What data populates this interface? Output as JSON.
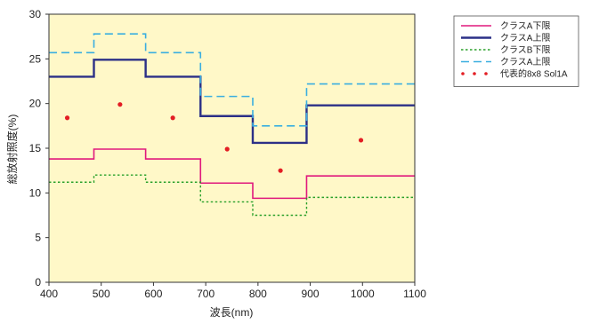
{
  "chart_data": {
    "type": "line",
    "title": "",
    "xlabel": "波長(nm)",
    "ylabel": "総放射照度(%)",
    "xlim": [
      400,
      1100
    ],
    "ylim": [
      0,
      30
    ],
    "x_ticks": [
      400,
      500,
      600,
      700,
      800,
      900,
      1000,
      1100
    ],
    "y_ticks": [
      0,
      5,
      10,
      15,
      20,
      25,
      30
    ],
    "x_tick_labels": [
      "400",
      "500",
      "600",
      "700",
      "800",
      "900",
      "1000",
      "1100"
    ],
    "y_tick_labels": [
      "0",
      "5",
      "10",
      "15",
      "20",
      "25",
      "30"
    ],
    "grid": false,
    "legend_position": "right",
    "background_color": "#fff8c8",
    "step_edges": [
      400,
      486,
      585,
      690,
      790,
      893,
      1100
    ],
    "series": [
      {
        "name": "クラスA下限",
        "style": "solid",
        "color": "#e0197d",
        "width": 1.6,
        "values": [
          13.8,
          14.9,
          13.8,
          11.1,
          9.4,
          11.9
        ]
      },
      {
        "name": "クラスA上限",
        "style": "solid",
        "color": "#2c3087",
        "width": 2.4,
        "values": [
          23.0,
          24.9,
          23.0,
          18.6,
          15.6,
          19.8
        ]
      },
      {
        "name": "クラスB下限",
        "style": "dotted",
        "color": "#2aa02a",
        "width": 1.4,
        "values": [
          11.2,
          12.0,
          11.2,
          9.0,
          7.5,
          9.5
        ]
      },
      {
        "name": "クラスA上限",
        "style": "dashed",
        "color": "#3aaee0",
        "width": 1.6,
        "values": [
          25.7,
          27.8,
          25.7,
          20.8,
          17.5,
          22.2
        ]
      },
      {
        "name": "代表的8x8 Sol1A",
        "style": "points",
        "color": "#e31e24",
        "width": 2,
        "points": [
          [
            435,
            18.4
          ],
          [
            536,
            19.9
          ],
          [
            637,
            18.4
          ],
          [
            741,
            14.9
          ],
          [
            843,
            12.5
          ],
          [
            997,
            15.9
          ]
        ]
      }
    ]
  }
}
